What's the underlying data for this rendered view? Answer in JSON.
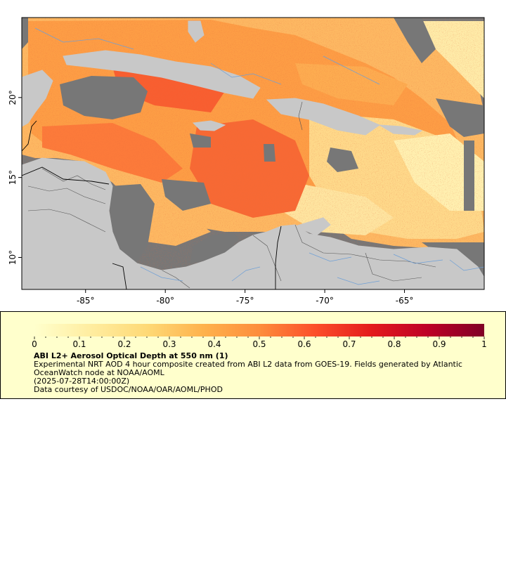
{
  "map": {
    "land_color": "#c8c8c8",
    "nodata_color": "#777777",
    "lon_ticks": [
      {
        "value": -85,
        "label": "-85°"
      },
      {
        "value": -80,
        "label": "-80°"
      },
      {
        "value": -75,
        "label": "-75°"
      },
      {
        "value": -70,
        "label": "-70°"
      },
      {
        "value": -65,
        "label": "-65°"
      }
    ],
    "lat_ticks": [
      {
        "value": 10,
        "label": "10°"
      },
      {
        "value": 15,
        "label": "15°"
      },
      {
        "value": 20,
        "label": "20°"
      }
    ],
    "lon_range": [
      -89,
      -60
    ],
    "lat_range": [
      8,
      25
    ]
  },
  "legend": {
    "title": "ABI L2+ Aerosol Optical Depth at 550 nm (1)",
    "description": "Experimental NRT AOD 4 hour composite created from ABI L2 data from GOES-19. Fields generated by Atlantic OceanWatch node at NOAA/AOML",
    "timestamp": "(2025-07-28T14:00:00Z)",
    "credit": "Data courtesy of USDOC/NOAA/OAR/AOML/PHOD",
    "colorbar": {
      "min": 0,
      "max": 1,
      "tick_labels": [
        "0",
        "0.1",
        "0.2",
        "0.3",
        "0.4",
        "0.5",
        "0.6",
        "0.7",
        "0.8",
        "0.9",
        "1"
      ],
      "colors": [
        "#ffffcc",
        "#ffeda0",
        "#fed976",
        "#feb24c",
        "#fd8d3c",
        "#fc4e2a",
        "#e31a1c",
        "#bd0026",
        "#800026"
      ]
    }
  }
}
